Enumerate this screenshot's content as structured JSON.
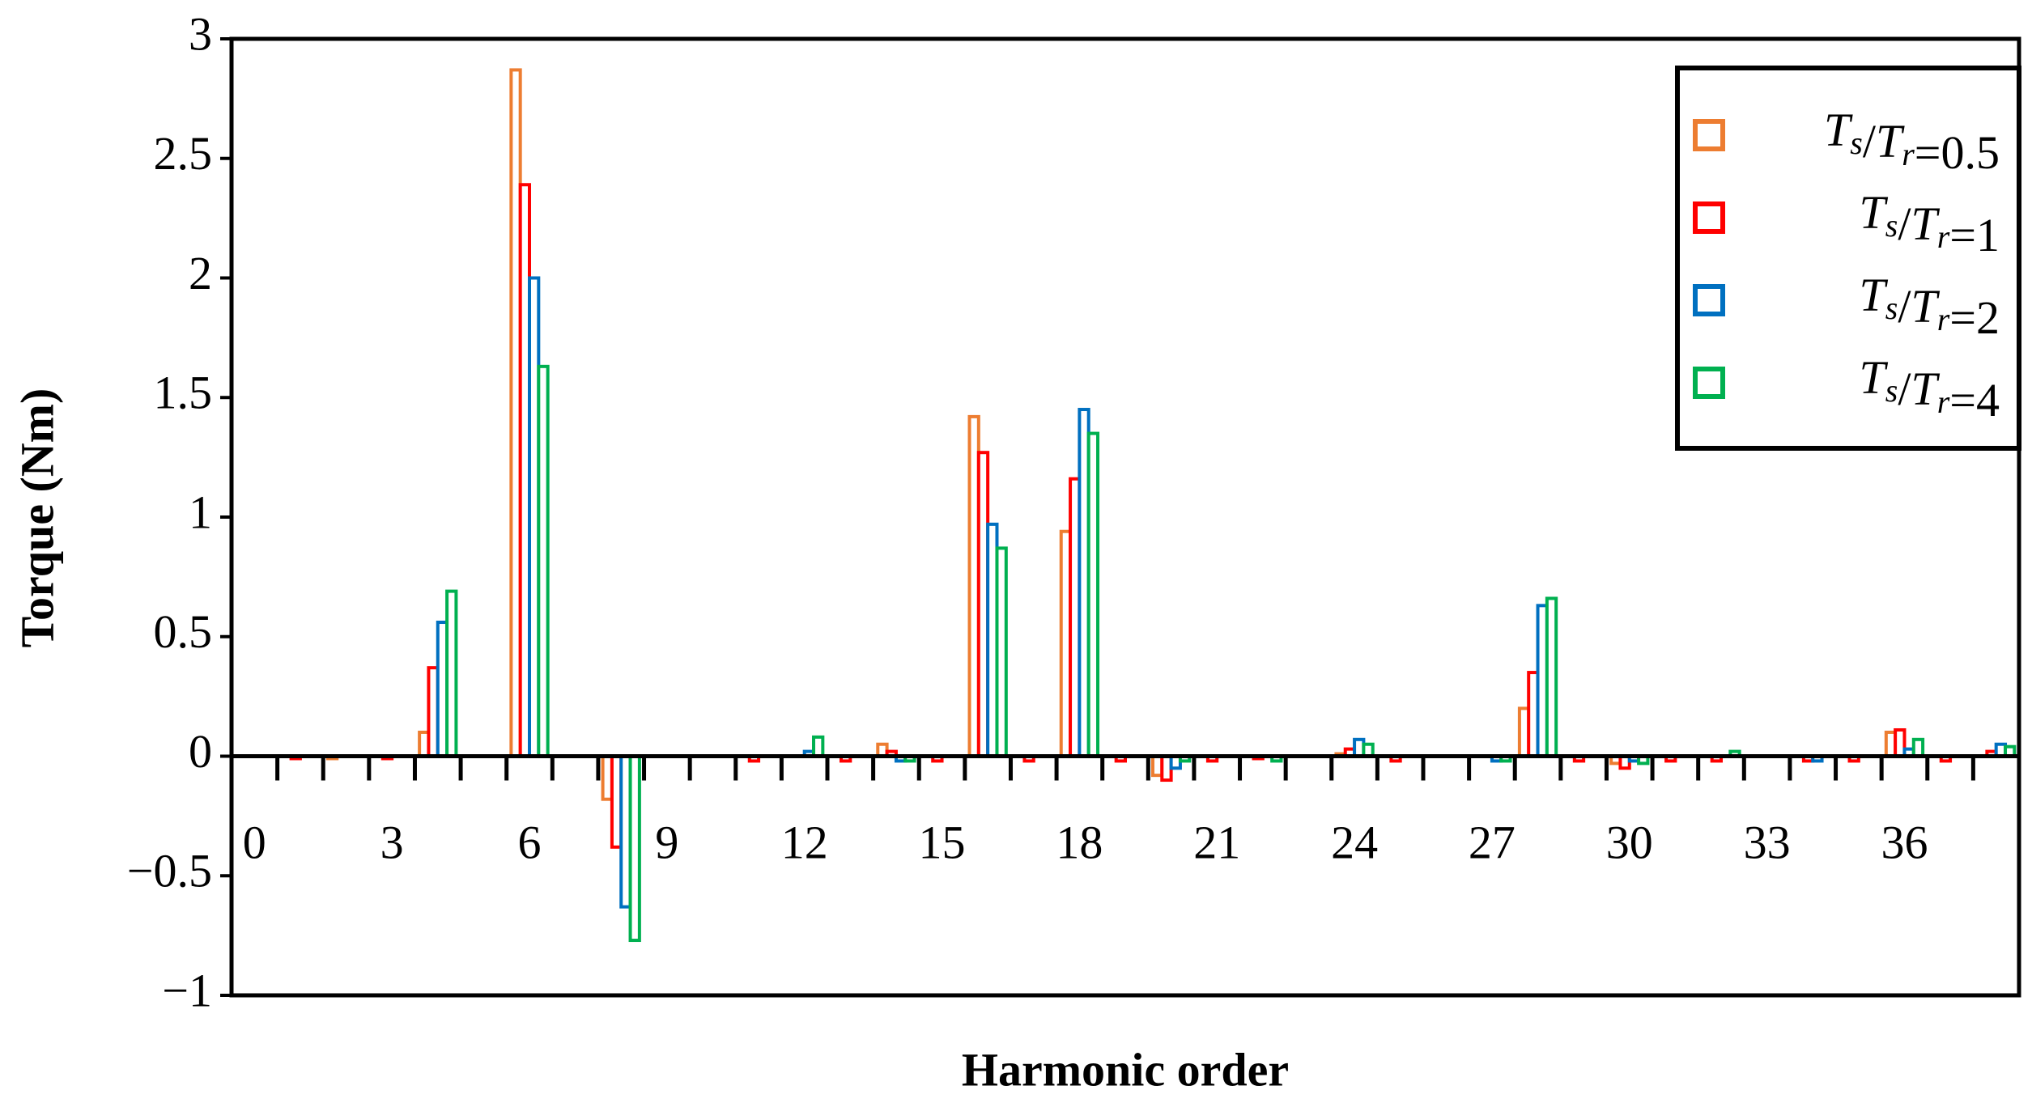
{
  "chart_data": {
    "type": "bar",
    "x_label": "Harmonic order",
    "y_label": "Torque  (Nm)",
    "categories": [
      0,
      null,
      null,
      3,
      null,
      null,
      6,
      null,
      null,
      9,
      null,
      null,
      12,
      null,
      null,
      15,
      null,
      null,
      18,
      null,
      null,
      21,
      null,
      null,
      24,
      null,
      null,
      27,
      null,
      null,
      30,
      null,
      null,
      33,
      null,
      null,
      36,
      null,
      null
    ],
    "series": [
      {
        "name": "Ts/Tr=0.5",
        "color": "#ED7D31",
        "values": [
          0,
          0,
          -0.01,
          0,
          0.1,
          0,
          2.87,
          0,
          -0.18,
          0,
          0,
          0,
          0,
          0,
          0.05,
          0,
          1.42,
          0,
          0.94,
          0,
          -0.08,
          0,
          0,
          0,
          0.01,
          0,
          0,
          0,
          0.2,
          0,
          -0.03,
          0,
          0,
          0,
          0,
          0,
          0.1,
          0,
          0
        ]
      },
      {
        "name": "Ts/Tr=1",
        "color": "#FF0000",
        "values": [
          0,
          -0.01,
          0,
          -0.01,
          0.37,
          0,
          2.39,
          0,
          -0.38,
          0,
          0,
          -0.02,
          0,
          -0.02,
          0.02,
          -0.02,
          1.27,
          -0.02,
          1.16,
          -0.02,
          -0.1,
          -0.02,
          -0.01,
          0,
          0.03,
          -0.02,
          0,
          0,
          0.35,
          -0.02,
          -0.05,
          -0.02,
          -0.02,
          0,
          -0.02,
          -0.02,
          0.11,
          -0.02,
          0.02
        ]
      },
      {
        "name": "Ts/Tr=2",
        "color": "#0070C0",
        "values": [
          0,
          0,
          0,
          0,
          0.56,
          0,
          2.0,
          0,
          -0.63,
          0,
          0,
          0,
          0.02,
          0,
          -0.02,
          0,
          0.97,
          0,
          1.45,
          0,
          -0.05,
          0,
          0,
          0,
          0.07,
          0,
          0,
          -0.02,
          0.63,
          0,
          -0.02,
          0,
          0,
          0,
          -0.02,
          0,
          0.03,
          0,
          0.05
        ]
      },
      {
        "name": "Ts/Tr=4",
        "color": "#00B050",
        "values": [
          0,
          0,
          0,
          0,
          0.69,
          0,
          1.63,
          0,
          -0.77,
          0,
          0,
          0,
          0.08,
          0,
          -0.02,
          0,
          0.87,
          0,
          1.35,
          0,
          -0.02,
          0,
          -0.02,
          0,
          0.05,
          0,
          0,
          -0.02,
          0.66,
          0,
          -0.03,
          0,
          0.02,
          0,
          0,
          0,
          0.07,
          0,
          0.04
        ]
      }
    ],
    "ylim": [
      -1,
      3
    ],
    "yticks": [
      {
        "value": -1,
        "label": "−1"
      },
      {
        "value": -0.5,
        "label": "−0.5"
      },
      0,
      0.5,
      1,
      1.5,
      2,
      2.5,
      3
    ],
    "legend": "upper right",
    "grid": false
  }
}
